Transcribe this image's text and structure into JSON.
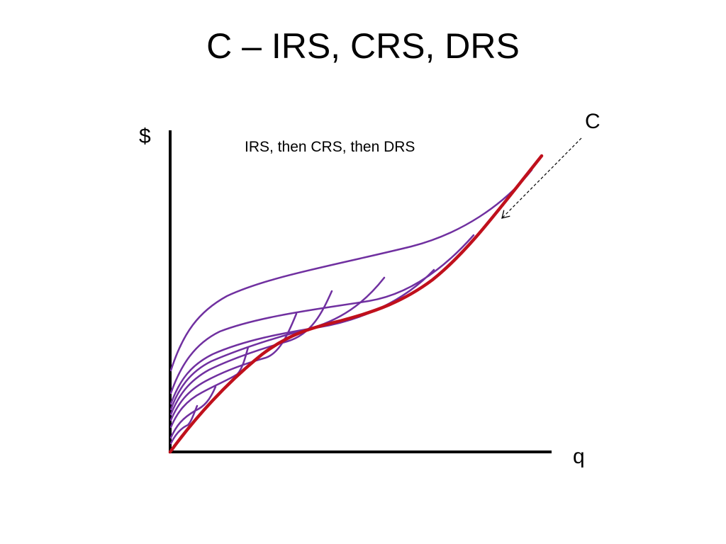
{
  "slide": {
    "title": "C – IRS, CRS, DRS"
  },
  "diagram": {
    "y_axis_label": "$",
    "x_axis_label": "q",
    "annotation": "IRS, then CRS, then DRS",
    "curve_label": "C",
    "colors": {
      "axes": "#000000",
      "envelope_curve": "#c0101c",
      "short_run_curves": "#7030a0",
      "arrow": "#000000"
    }
  }
}
